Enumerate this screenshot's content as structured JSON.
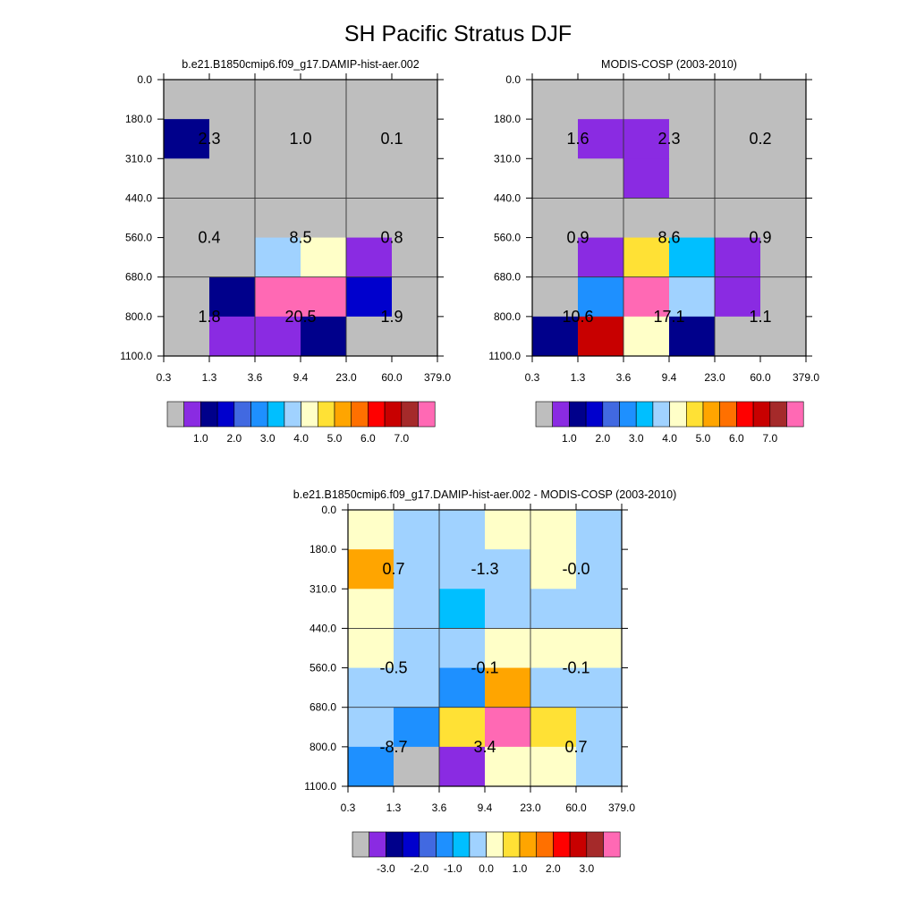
{
  "title": "SH Pacific Stratus DJF",
  "axis": {
    "x_ticks": [
      "0.3",
      "1.3",
      "3.6",
      "9.4",
      "23.0",
      "60.0",
      "379.0"
    ],
    "y_ticks": [
      "0.0",
      "180.0",
      "310.0",
      "440.0",
      "560.0",
      "680.0",
      "800.0",
      "1100.0"
    ]
  },
  "colors": {
    "abs_palette": [
      "#bebebe",
      "#8a2be2",
      "#00008b",
      "#0000cd",
      "#4169e1",
      "#1e90ff",
      "#00bfff",
      "#a0d2ff",
      "#ffffc8",
      "#ffe135",
      "#ffa500",
      "#ff7000",
      "#ff0000",
      "#c80000",
      "#a52a2a",
      "#ff69b4"
    ],
    "diff_palette": [
      "#bebebe",
      "#8a2be2",
      "#00008b",
      "#0000cd",
      "#4169e1",
      "#1e90ff",
      "#00bfff",
      "#a0d2ff",
      "#ffffc8",
      "#ffe135",
      "#ffa500",
      "#ff7000",
      "#ff0000",
      "#c80000",
      "#a52a2a",
      "#ff69b4"
    ]
  },
  "chart_data": [
    {
      "type": "heatmap",
      "subtitle": "b.e21.B1850cmip6.f09_g17.DAMIP-hist-aer.002",
      "xlabel": "",
      "ylabel": "",
      "x_edges": [
        "0.3",
        "1.3",
        "3.6",
        "9.4",
        "23.0",
        "60.0",
        "379.0"
      ],
      "y_edges": [
        "0.0",
        "180.0",
        "310.0",
        "440.0",
        "560.0",
        "680.0",
        "800.0",
        "1100.0"
      ],
      "cells": [
        [
          0,
          0,
          0,
          0,
          0,
          0
        ],
        [
          2,
          0,
          0,
          0,
          0,
          0
        ],
        [
          0,
          0,
          0,
          0,
          0,
          0
        ],
        [
          0,
          0,
          0,
          0,
          0,
          0
        ],
        [
          0,
          0,
          7,
          8,
          1,
          0
        ],
        [
          0,
          2,
          15,
          15,
          3,
          0
        ],
        [
          0,
          1,
          1,
          2,
          0,
          0
        ]
      ],
      "sums": [
        {
          "label": "2.3",
          "col": 0,
          "row": 0
        },
        {
          "label": "1.0",
          "col": 1,
          "row": 0
        },
        {
          "label": "0.1",
          "col": 2,
          "row": 0
        },
        {
          "label": "0.4",
          "col": 0,
          "row": 1
        },
        {
          "label": "8.5",
          "col": 1,
          "row": 1
        },
        {
          "label": "0.8",
          "col": 2,
          "row": 1
        },
        {
          "label": "1.8",
          "col": 0,
          "row": 2
        },
        {
          "label": "20.5",
          "col": 1,
          "row": 2
        },
        {
          "label": "1.9",
          "col": 2,
          "row": 2
        }
      ],
      "colorbar_labels": [
        "1.0",
        "2.0",
        "3.0",
        "4.0",
        "5.0",
        "6.0",
        "7.0"
      ]
    },
    {
      "type": "heatmap",
      "subtitle": "MODIS-COSP (2003-2010)",
      "xlabel": "",
      "ylabel": "",
      "x_edges": [
        "0.3",
        "1.3",
        "3.6",
        "9.4",
        "23.0",
        "60.0",
        "379.0"
      ],
      "y_edges": [
        "0.0",
        "180.0",
        "310.0",
        "440.0",
        "560.0",
        "680.0",
        "800.0",
        "1100.0"
      ],
      "cells": [
        [
          0,
          0,
          0,
          0,
          0,
          0
        ],
        [
          0,
          1,
          1,
          0,
          0,
          0
        ],
        [
          0,
          0,
          1,
          0,
          0,
          0
        ],
        [
          0,
          0,
          0,
          0,
          0,
          0
        ],
        [
          0,
          1,
          9,
          6,
          1,
          0
        ],
        [
          0,
          5,
          15,
          7,
          1,
          0
        ],
        [
          2,
          13,
          8,
          2,
          0,
          0
        ]
      ],
      "sums": [
        {
          "label": "1.6",
          "col": 0,
          "row": 0
        },
        {
          "label": "2.3",
          "col": 1,
          "row": 0
        },
        {
          "label": "0.2",
          "col": 2,
          "row": 0
        },
        {
          "label": "0.9",
          "col": 0,
          "row": 1
        },
        {
          "label": "8.6",
          "col": 1,
          "row": 1
        },
        {
          "label": "0.9",
          "col": 2,
          "row": 1
        },
        {
          "label": "10.6",
          "col": 0,
          "row": 2
        },
        {
          "label": "17.1",
          "col": 1,
          "row": 2
        },
        {
          "label": "1.1",
          "col": 2,
          "row": 2
        }
      ],
      "colorbar_labels": [
        "1.0",
        "2.0",
        "3.0",
        "4.0",
        "5.0",
        "6.0",
        "7.0"
      ]
    },
    {
      "type": "heatmap",
      "subtitle": "b.e21.B1850cmip6.f09_g17.DAMIP-hist-aer.002 - MODIS-COSP (2003-2010)",
      "xlabel": "",
      "ylabel": "",
      "x_edges": [
        "0.3",
        "1.3",
        "3.6",
        "9.4",
        "23.0",
        "60.0",
        "379.0"
      ],
      "y_edges": [
        "0.0",
        "180.0",
        "310.0",
        "440.0",
        "560.0",
        "680.0",
        "800.0",
        "1100.0"
      ],
      "cells": [
        [
          8,
          7,
          7,
          8,
          8,
          7
        ],
        [
          10,
          7,
          7,
          7,
          8,
          7
        ],
        [
          8,
          7,
          6,
          7,
          7,
          7
        ],
        [
          8,
          7,
          7,
          8,
          8,
          8
        ],
        [
          7,
          7,
          5,
          10,
          7,
          7
        ],
        [
          7,
          5,
          9,
          15,
          9,
          7
        ],
        [
          5,
          0,
          1,
          8,
          8,
          7
        ]
      ],
      "sums": [
        {
          "label": "0.7",
          "col": 0,
          "row": 0
        },
        {
          "label": "-1.3",
          "col": 1,
          "row": 0
        },
        {
          "label": "-0.0",
          "col": 2,
          "row": 0
        },
        {
          "label": "-0.5",
          "col": 0,
          "row": 1
        },
        {
          "label": "-0.1",
          "col": 1,
          "row": 1
        },
        {
          "label": "-0.1",
          "col": 2,
          "row": 1
        },
        {
          "label": "-8.7",
          "col": 0,
          "row": 2
        },
        {
          "label": "3.4",
          "col": 1,
          "row": 2
        },
        {
          "label": "0.7",
          "col": 2,
          "row": 2
        }
      ],
      "colorbar_labels": [
        "-3.0",
        "-2.0",
        "-1.0",
        "0.0",
        "1.0",
        "2.0",
        "3.0"
      ]
    }
  ]
}
